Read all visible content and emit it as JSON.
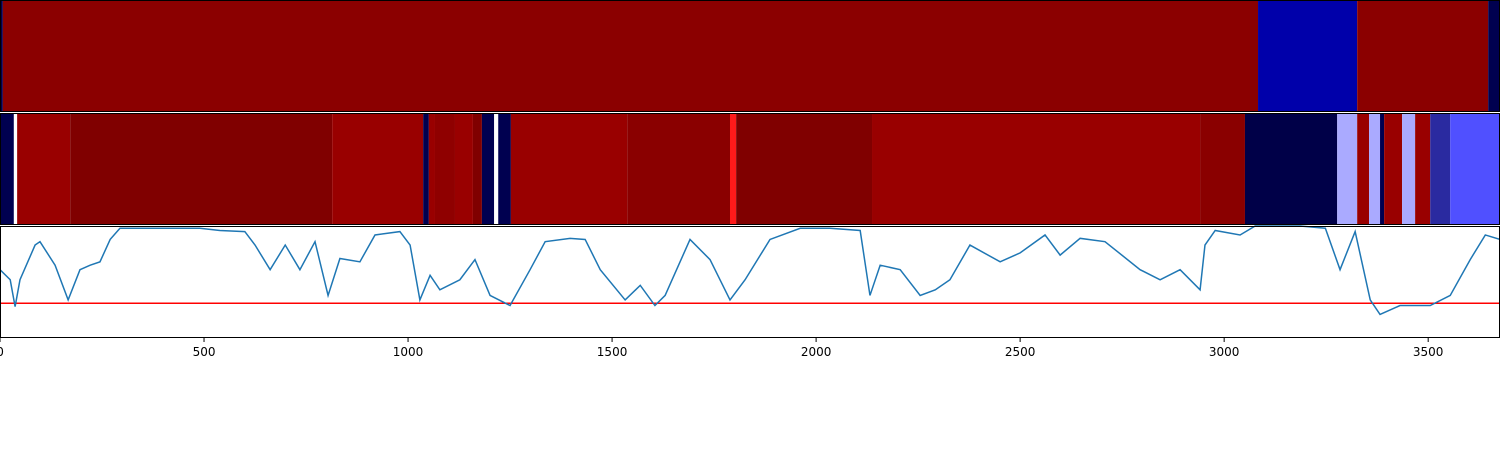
{
  "chart_data": [
    {
      "type": "strip",
      "xlim": [
        0,
        3676
      ],
      "bins": [
        0,
        7,
        3083,
        3326,
        3647,
        3676
      ],
      "colors": [
        "#000050",
        "#8b0000",
        "#0000aa",
        "#8b0000",
        "#000050"
      ]
    },
    {
      "type": "strip",
      "xlim": [
        0,
        3676
      ],
      "bins": [
        0,
        34,
        42,
        172,
        814,
        1037,
        1051,
        1066,
        1115,
        1159,
        1181,
        1211,
        1221,
        1252,
        1537,
        1789,
        1804,
        2137,
        2941,
        3051,
        3277,
        3326,
        3355,
        3382,
        3392,
        3436,
        3468,
        3505,
        3554,
        3676
      ],
      "colors": [
        "#000050",
        "#ffffff",
        "#990000",
        "#800000",
        "#990000",
        "#000050",
        "#990000",
        "#8f0000",
        "#990000",
        "#800000",
        "#000050",
        "#ffffff",
        "#000050",
        "#990000",
        "#8a0000",
        "#ff1a1a",
        "#800000",
        "#990000",
        "#8a0000",
        "#000048",
        "#aaaaff",
        "#990000",
        "#aaaaff",
        "#000050",
        "#990000",
        "#aaaaff",
        "#990000",
        "#2a2aa0",
        "#5050ff"
      ]
    },
    {
      "type": "line",
      "xlim": [
        0,
        3676
      ],
      "ylim": [
        0,
        1
      ],
      "xticks": [
        0,
        500,
        1000,
        1500,
        2000,
        2500,
        3000,
        3500
      ],
      "threshold": {
        "value": 0.31,
        "color": "#ff0000"
      },
      "x": [
        0,
        25,
        37,
        49,
        86,
        98,
        135,
        167,
        196,
        221,
        245,
        270,
        294,
        392,
        441,
        490,
        539,
        600,
        625,
        662,
        699,
        735,
        772,
        804,
        833,
        882,
        919,
        980,
        1005,
        1029,
        1054,
        1078,
        1127,
        1164,
        1201,
        1250,
        1299,
        1336,
        1397,
        1434,
        1471,
        1532,
        1569,
        1605,
        1630,
        1691,
        1740,
        1789,
        1826,
        1887,
        1961,
        2034,
        2108,
        2132,
        2157,
        2206,
        2255,
        2292,
        2328,
        2377,
        2451,
        2500,
        2561,
        2598,
        2647,
        2708,
        2794,
        2843,
        2892,
        2941,
        2953,
        2978,
        3039,
        3076,
        3186,
        3248,
        3284,
        3321,
        3358,
        3382,
        3431,
        3505,
        3554,
        3603,
        3640,
        3676
      ],
      "series": [
        {
          "color": "#1f77b4",
          "values": [
            0.61,
            0.52,
            0.28,
            0.52,
            0.83,
            0.86,
            0.65,
            0.34,
            0.61,
            0.65,
            0.68,
            0.88,
            0.98,
            0.98,
            0.98,
            0.98,
            0.96,
            0.95,
            0.83,
            0.61,
            0.83,
            0.61,
            0.86,
            0.38,
            0.71,
            0.68,
            0.92,
            0.95,
            0.83,
            0.34,
            0.56,
            0.43,
            0.52,
            0.7,
            0.38,
            0.29,
            0.61,
            0.86,
            0.89,
            0.88,
            0.61,
            0.34,
            0.47,
            0.29,
            0.38,
            0.88,
            0.7,
            0.34,
            0.52,
            0.88,
            0.98,
            0.98,
            0.96,
            0.38,
            0.65,
            0.61,
            0.38,
            0.43,
            0.52,
            0.83,
            0.68,
            0.76,
            0.92,
            0.74,
            0.89,
            0.86,
            0.61,
            0.52,
            0.61,
            0.43,
            0.83,
            0.96,
            0.92,
            1.0,
            1.0,
            0.98,
            0.61,
            0.95,
            0.34,
            0.21,
            0.29,
            0.29,
            0.38,
            0.7,
            0.92,
            0.88
          ]
        }
      ]
    }
  ]
}
